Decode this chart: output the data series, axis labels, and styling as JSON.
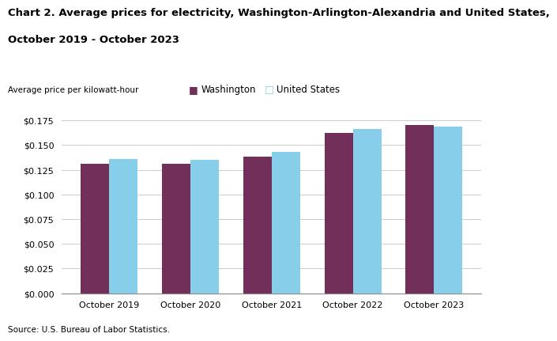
{
  "title_line1": "Chart 2. Average prices for electricity, Washington-Arlington-Alexandria and United States,",
  "title_line2": "October 2019 - October 2023",
  "ylabel": "Average price per kilowatt-hour",
  "source": "Source: U.S. Bureau of Labor Statistics.",
  "categories": [
    "October 2019",
    "October 2020",
    "October 2021",
    "October 2022",
    "October 2023"
  ],
  "washington_values": [
    0.131,
    0.131,
    0.138,
    0.162,
    0.17
  ],
  "us_values": [
    0.136,
    0.135,
    0.143,
    0.166,
    0.169
  ],
  "washington_color": "#722F5A",
  "us_color": "#87CEEB",
  "washington_label": "Washington",
  "us_label": "United States",
  "ylim": [
    0.0,
    0.175
  ],
  "yticks": [
    0.0,
    0.025,
    0.05,
    0.075,
    0.1,
    0.125,
    0.15,
    0.175
  ],
  "bar_width": 0.35,
  "background_color": "#ffffff",
  "grid_color": "#cccccc",
  "title_fontsize": 9.5,
  "axis_label_fontsize": 7.5,
  "tick_fontsize": 8,
  "legend_fontsize": 8.5
}
